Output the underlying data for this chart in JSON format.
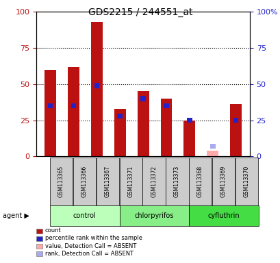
{
  "title": "GDS2215 / 244551_at",
  "samples": [
    "GSM113365",
    "GSM113366",
    "GSM113367",
    "GSM113371",
    "GSM113372",
    "GSM113373",
    "GSM113368",
    "GSM113369",
    "GSM113370"
  ],
  "red_values": [
    60,
    62,
    93,
    33,
    45,
    40,
    25,
    4,
    36
  ],
  "blue_values": [
    35,
    35,
    49,
    28,
    40,
    35,
    25,
    7,
    25
  ],
  "absent_flags": [
    false,
    false,
    false,
    false,
    false,
    false,
    false,
    true,
    false
  ],
  "groups": [
    {
      "label": "control",
      "start": 0,
      "end": 3,
      "color": "#bbffbb"
    },
    {
      "label": "chlorpyrifos",
      "start": 3,
      "end": 6,
      "color": "#88ee88"
    },
    {
      "label": "cyfluthrin",
      "start": 6,
      "end": 9,
      "color": "#44dd44"
    }
  ],
  "ylim": [
    0,
    100
  ],
  "yticks": [
    0,
    25,
    50,
    75,
    100
  ],
  "red_color": "#bb1111",
  "blue_color": "#2222cc",
  "pink_color": "#ffaaaa",
  "lightblue_color": "#aaaaee",
  "legend_items": [
    {
      "color": "#bb1111",
      "label": "count"
    },
    {
      "color": "#2222cc",
      "label": "percentile rank within the sample"
    },
    {
      "color": "#ffaaaa",
      "label": "value, Detection Call = ABSENT"
    },
    {
      "color": "#aaaaee",
      "label": "rank, Detection Call = ABSENT"
    }
  ]
}
